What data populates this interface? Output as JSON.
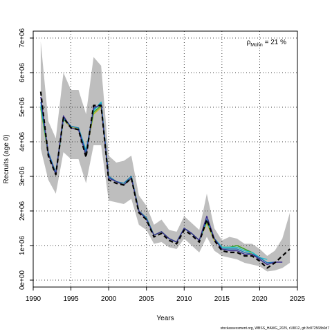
{
  "chart_data": {
    "type": "line",
    "title": "",
    "xlabel": "Years",
    "ylabel": "Recruits (age 0)",
    "xlim": [
      1990,
      2025
    ],
    "ylim": [
      -200000,
      7200000
    ],
    "x_ticks": [
      1990,
      1995,
      2000,
      2005,
      2010,
      2015,
      2020,
      2025
    ],
    "x_tick_labels": [
      "1990",
      "1995",
      "2000",
      "2005",
      "2010",
      "2015",
      "2020",
      "2025"
    ],
    "y_ticks": [
      0,
      1000000,
      2000000,
      3000000,
      4000000,
      5000000,
      6000000,
      7000000
    ],
    "y_tick_labels": [
      "0e+00",
      "1e+06",
      "2e+06",
      "3e+06",
      "4e+06",
      "5e+06",
      "6e+06",
      "7e+06"
    ],
    "grid": true,
    "annotation": {
      "prefix": "ρ",
      "subscript": "Mohn",
      "text": " = 21 %"
    },
    "confidence_band": {
      "x": [
        1991,
        1992,
        1993,
        1994,
        1995,
        1996,
        1997,
        1998,
        1999,
        2000,
        2001,
        2002,
        2003,
        2004,
        2005,
        2006,
        2007,
        2008,
        2009,
        2010,
        2011,
        2012,
        2013,
        2014,
        2015,
        2016,
        2017,
        2018,
        2019,
        2020,
        2021,
        2022,
        2023,
        2024
      ],
      "lower": [
        3800000,
        2900000,
        2500000,
        3700000,
        3500000,
        3500000,
        2800000,
        3900000,
        3900000,
        2300000,
        2250000,
        2200000,
        2350000,
        1600000,
        1450000,
        1050000,
        1100000,
        950000,
        900000,
        1200000,
        1000000,
        800000,
        1250000,
        850000,
        700000,
        650000,
        600000,
        500000,
        450000,
        400000,
        250000,
        280000,
        350000,
        500000
      ],
      "upper": [
        6900000,
        4600000,
        4100000,
        6000000,
        5500000,
        5500000,
        4800000,
        6450000,
        6200000,
        3600000,
        3400000,
        3450000,
        3600000,
        2450000,
        2150000,
        1600000,
        1750000,
        1450000,
        1400000,
        1850000,
        1650000,
        1450000,
        2500000,
        1500000,
        1150000,
        1250000,
        1200000,
        1050000,
        1050000,
        900000,
        700000,
        850000,
        1200000,
        1950000
      ]
    },
    "series": [
      {
        "name": "",
        "color": "#000000",
        "dash": "6,4",
        "width": 2.2,
        "x": [
          1991,
          1992,
          1993,
          1994,
          1995,
          1996,
          1997,
          1998,
          1999,
          2000,
          2001,
          2002,
          2003,
          2004,
          2005,
          2006,
          2007,
          2008,
          2009,
          2010,
          2011,
          2012,
          2013,
          2014,
          2015,
          2016,
          2017,
          2018,
          2019,
          2020,
          2021,
          2022,
          2023,
          2024
        ],
        "values": [
          5450000,
          3600000,
          3050000,
          4700000,
          4400000,
          4350000,
          3550000,
          5050000,
          5050000,
          2900000,
          2800000,
          2750000,
          2950000,
          1950000,
          1750000,
          1250000,
          1350000,
          1150000,
          1050000,
          1450000,
          1300000,
          1100000,
          1750000,
          1150000,
          850000,
          800000,
          800000,
          700000,
          700000,
          550000,
          350000,
          500000,
          700000,
          900000
        ]
      },
      {
        "name": "",
        "color": "#3a2d8c",
        "dash": "",
        "width": 1.4,
        "x": [
          1991,
          1992,
          1993,
          1994,
          1995,
          1996,
          1997,
          1998,
          1999,
          2000,
          2001,
          2002,
          2003,
          2004,
          2005,
          2006,
          2007,
          2008,
          2009,
          2010,
          2011,
          2012,
          2013,
          2014,
          2015,
          2016,
          2017,
          2018,
          2019,
          2020,
          2021,
          2022,
          2023
        ],
        "values": [
          5300000,
          3650000,
          3050000,
          4750000,
          4400000,
          4350000,
          3600000,
          5000000,
          5050000,
          2950000,
          2850000,
          2750000,
          2950000,
          2000000,
          1750000,
          1300000,
          1400000,
          1200000,
          1100000,
          1500000,
          1350000,
          1150000,
          1850000,
          1200000,
          900000,
          850000,
          850000,
          750000,
          750000,
          600000,
          450000,
          520000,
          520000
        ]
      },
      {
        "name": "",
        "color": "#1f77b4",
        "dash": "",
        "width": 1.4,
        "x": [
          1991,
          1992,
          1993,
          1994,
          1995,
          1996,
          1997,
          1998,
          1999,
          2000,
          2001,
          2002,
          2003,
          2004,
          2005,
          2006,
          2007,
          2008,
          2009,
          2010,
          2011,
          2012,
          2013,
          2014,
          2015,
          2016,
          2017,
          2018,
          2019,
          2020,
          2021,
          2022
        ],
        "values": [
          5150000,
          3700000,
          3100000,
          4700000,
          4450000,
          4400000,
          3700000,
          4950000,
          5100000,
          3000000,
          2850000,
          2800000,
          3000000,
          2000000,
          1800000,
          1300000,
          1400000,
          1200000,
          1100000,
          1500000,
          1350000,
          1150000,
          1750000,
          1200000,
          900000,
          900000,
          900000,
          800000,
          750000,
          650000,
          500000,
          520000
        ]
      },
      {
        "name": "",
        "color": "#17becf",
        "dash": "",
        "width": 1.4,
        "x": [
          1991,
          1992,
          1993,
          1994,
          1995,
          1996,
          1997,
          1998,
          1999,
          2000,
          2001,
          2002,
          2003,
          2004,
          2005,
          2006,
          2007,
          2008,
          2009,
          2010,
          2011,
          2012,
          2013,
          2014,
          2015,
          2016,
          2017,
          2018,
          2019,
          2020,
          2021
        ],
        "values": [
          5050000,
          3700000,
          3100000,
          4650000,
          4450000,
          4400000,
          3750000,
          4900000,
          5150000,
          3000000,
          2850000,
          2800000,
          3000000,
          2000000,
          1800000,
          1300000,
          1400000,
          1200000,
          1100000,
          1500000,
          1350000,
          1150000,
          1700000,
          1200000,
          950000,
          950000,
          950000,
          850000,
          800000,
          650000,
          600000
        ]
      },
      {
        "name": "",
        "color": "#2ca02c",
        "dash": "",
        "width": 1.4,
        "x": [
          1991,
          1992,
          1993,
          1994,
          1995,
          1996,
          1997,
          1998,
          1999,
          2000,
          2001,
          2002,
          2003,
          2004,
          2005,
          2006,
          2007,
          2008,
          2009,
          2010,
          2011,
          2012,
          2013,
          2014,
          2015,
          2016,
          2017,
          2018,
          2019,
          2020
        ],
        "values": [
          5000000,
          3650000,
          3100000,
          4650000,
          4450000,
          4400000,
          3700000,
          4850000,
          5050000,
          3000000,
          2850000,
          2800000,
          3000000,
          2000000,
          1800000,
          1300000,
          1400000,
          1200000,
          1100000,
          1500000,
          1350000,
          1150000,
          1700000,
          1200000,
          950000,
          950000,
          1000000,
          900000,
          800000,
          650000
        ]
      },
      {
        "name": "",
        "color": "#bcbd22",
        "dash": "",
        "width": 1.6,
        "x": [
          1991,
          1992,
          1993,
          1994,
          1995,
          1996,
          1997,
          1998,
          1999,
          2000,
          2001,
          2002,
          2003,
          2004,
          2005,
          2006,
          2007,
          2008,
          2009,
          2010,
          2011,
          2012,
          2013,
          2014,
          2015,
          2016,
          2017,
          2018,
          2019
        ],
        "values": [
          4950000,
          3650000,
          3050000,
          4650000,
          4400000,
          4400000,
          3700000,
          4800000,
          5000000,
          3000000,
          2850000,
          2750000,
          2950000,
          2000000,
          1800000,
          1300000,
          1400000,
          1200000,
          1100000,
          1500000,
          1350000,
          1150000,
          1650000,
          1150000,
          950000,
          950000,
          1000000,
          900000,
          750000
        ]
      }
    ]
  },
  "footer": {
    "source": "stockassessment.org, WBSS_HAWG_2025, r18812, git:3c872568b0d7"
  }
}
